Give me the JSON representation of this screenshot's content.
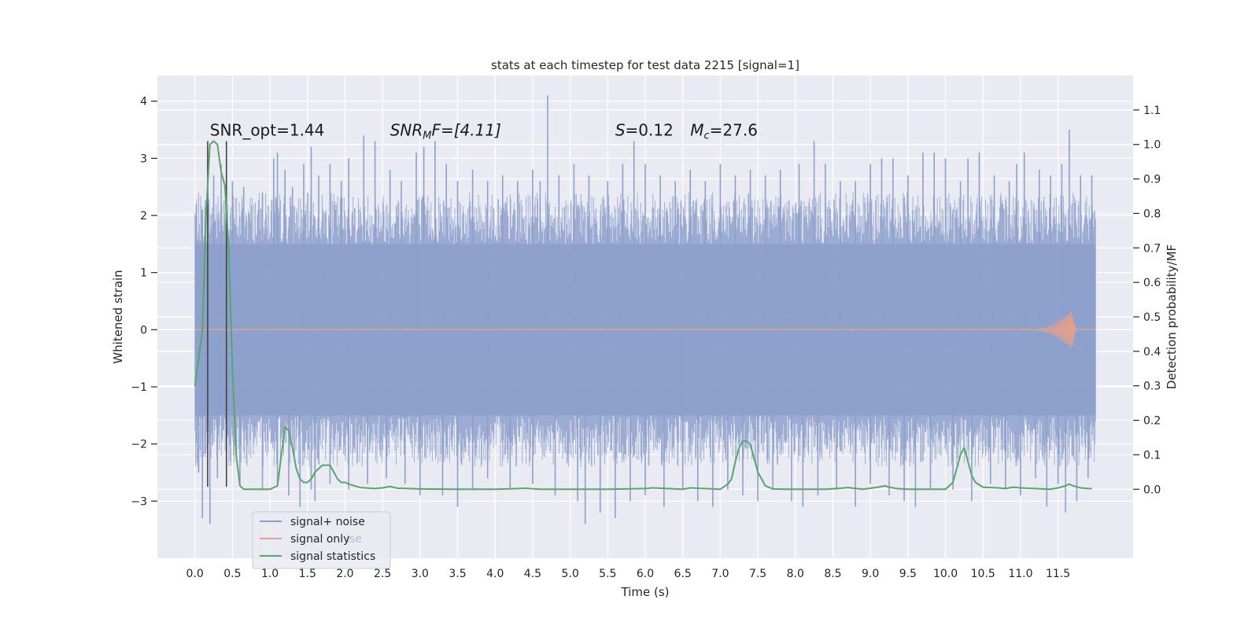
{
  "chart_data": {
    "type": "line",
    "title": "stats at each timestep for test data 2215 [signal=1]",
    "xlabel": "Time (s)",
    "ylabel_left": "Whitened strain",
    "ylabel_right": "Detection probability/MF",
    "xlim": [
      -0.5,
      12.5
    ],
    "ylim_left": [
      -4.0,
      4.45
    ],
    "ylim_right": [
      -0.2,
      1.2
    ],
    "xticks": [
      0.0,
      0.5,
      1.0,
      1.5,
      2.0,
      2.5,
      3.0,
      3.5,
      4.0,
      4.5,
      5.0,
      5.5,
      6.0,
      6.5,
      7.0,
      7.5,
      8.0,
      8.5,
      9.0,
      9.5,
      10.0,
      10.5,
      11.0,
      11.5
    ],
    "xtick_labels": [
      "0.0",
      "0.5",
      "1.0",
      "1.5",
      "2.0",
      "2.5",
      "3.0",
      "3.5",
      "4.0",
      "4.5",
      "5.0",
      "5.5",
      "6.0",
      "6.5",
      "7.0",
      "7.5",
      "8.0",
      "8.5",
      "9.0",
      "9.5",
      "10.0",
      "10.5",
      "11.0",
      "11.5"
    ],
    "yticks_left": [
      -3,
      -2,
      -1,
      0,
      1,
      2,
      3,
      4
    ],
    "ytick_labels_left": [
      "−3",
      "−2",
      "−1",
      "0",
      "1",
      "2",
      "3",
      "4"
    ],
    "yticks_right": [
      0.0,
      0.1,
      0.2,
      0.3,
      0.4,
      0.5,
      0.6,
      0.7,
      0.8,
      0.9,
      1.0,
      1.1
    ],
    "ytick_labels_right": [
      "0.0",
      "0.1",
      "0.2",
      "0.3",
      "0.4",
      "0.5",
      "0.6",
      "0.7",
      "0.8",
      "0.9",
      "1.0",
      "1.1"
    ],
    "grid": true,
    "legend_placement": "lower-left",
    "series": [
      {
        "name": "signal+ noise",
        "color": "#8da0cb",
        "axis": "left",
        "x_range": [
          0.0,
          12.0
        ],
        "envelope_typical": [
          -1.5,
          1.5
        ],
        "spikes_up": [
          [
            0.02,
            2.2
          ],
          [
            0.1,
            2.1
          ],
          [
            0.17,
            2.5
          ],
          [
            0.25,
            2.7
          ],
          [
            0.35,
            2.9
          ],
          [
            0.5,
            2.6
          ],
          [
            0.65,
            2.5
          ],
          [
            0.9,
            2.4
          ],
          [
            1.05,
            3.0
          ],
          [
            1.1,
            3.1
          ],
          [
            1.2,
            2.8
          ],
          [
            1.3,
            2.5
          ],
          [
            1.45,
            2.9
          ],
          [
            1.55,
            3.2
          ],
          [
            1.65,
            2.7
          ],
          [
            1.8,
            2.9
          ],
          [
            1.95,
            2.6
          ],
          [
            2.05,
            3.0
          ],
          [
            2.25,
            3.4
          ],
          [
            2.4,
            3.3
          ],
          [
            2.6,
            2.8
          ],
          [
            2.75,
            2.6
          ],
          [
            2.95,
            3.1
          ],
          [
            3.05,
            3.2
          ],
          [
            3.2,
            3.3
          ],
          [
            3.35,
            2.9
          ],
          [
            3.5,
            2.6
          ],
          [
            3.7,
            2.8
          ],
          [
            3.9,
            2.6
          ],
          [
            4.1,
            2.7
          ],
          [
            4.3,
            2.6
          ],
          [
            4.5,
            2.8
          ],
          [
            4.6,
            2.6
          ],
          [
            4.7,
            4.1
          ],
          [
            4.85,
            2.7
          ],
          [
            5.05,
            2.9
          ],
          [
            5.25,
            2.7
          ],
          [
            5.5,
            2.6
          ],
          [
            5.7,
            2.9
          ],
          [
            5.85,
            3.3
          ],
          [
            6.0,
            2.9
          ],
          [
            6.2,
            2.7
          ],
          [
            6.4,
            2.6
          ],
          [
            6.6,
            2.8
          ],
          [
            6.8,
            2.6
          ],
          [
            7.0,
            2.9
          ],
          [
            7.2,
            2.7
          ],
          [
            7.4,
            2.8
          ],
          [
            7.6,
            2.7
          ],
          [
            7.8,
            2.8
          ],
          [
            8.05,
            2.9
          ],
          [
            8.25,
            3.3
          ],
          [
            8.4,
            2.9
          ],
          [
            8.6,
            2.6
          ],
          [
            8.8,
            2.6
          ],
          [
            9.0,
            2.9
          ],
          [
            9.15,
            3.0
          ],
          [
            9.3,
            3.0
          ],
          [
            9.5,
            2.7
          ],
          [
            9.7,
            3.1
          ],
          [
            9.85,
            3.1
          ],
          [
            10.0,
            3.0
          ],
          [
            10.2,
            2.6
          ],
          [
            10.3,
            3.0
          ],
          [
            10.45,
            3.1
          ],
          [
            10.65,
            2.7
          ],
          [
            10.85,
            2.6
          ],
          [
            10.95,
            2.9
          ],
          [
            11.05,
            3.1
          ],
          [
            11.25,
            2.8
          ],
          [
            11.4,
            2.7
          ],
          [
            11.55,
            2.9
          ],
          [
            11.65,
            3.5
          ],
          [
            11.8,
            2.7
          ],
          [
            11.95,
            2.7
          ]
        ],
        "spikes_down": [
          [
            0.05,
            -2.5
          ],
          [
            0.1,
            -3.3
          ],
          [
            0.2,
            -3.4
          ],
          [
            0.3,
            -2.6
          ],
          [
            0.6,
            -2.7
          ],
          [
            0.9,
            -2.8
          ],
          [
            1.1,
            -2.7
          ],
          [
            1.25,
            -2.9
          ],
          [
            1.4,
            -3.1
          ],
          [
            1.55,
            -2.8
          ],
          [
            1.6,
            -3.0
          ],
          [
            1.8,
            -2.7
          ],
          [
            2.05,
            -2.8
          ],
          [
            2.3,
            -2.7
          ],
          [
            2.55,
            -2.6
          ],
          [
            2.8,
            -2.7
          ],
          [
            3.0,
            -2.9
          ],
          [
            3.3,
            -2.9
          ],
          [
            3.5,
            -3.1
          ],
          [
            3.7,
            -2.8
          ],
          [
            3.9,
            -2.6
          ],
          [
            4.2,
            -2.8
          ],
          [
            4.5,
            -2.7
          ],
          [
            4.8,
            -2.9
          ],
          [
            5.1,
            -3.0
          ],
          [
            5.2,
            -3.4
          ],
          [
            5.4,
            -3.2
          ],
          [
            5.6,
            -3.3
          ],
          [
            5.8,
            -3.0
          ],
          [
            6.0,
            -2.9
          ],
          [
            6.25,
            -3.1
          ],
          [
            6.5,
            -2.8
          ],
          [
            6.7,
            -3.0
          ],
          [
            6.9,
            -3.1
          ],
          [
            7.1,
            -2.8
          ],
          [
            7.3,
            -2.9
          ],
          [
            7.5,
            -3.0
          ],
          [
            7.7,
            -2.8
          ],
          [
            7.95,
            -3.0
          ],
          [
            8.1,
            -3.1
          ],
          [
            8.3,
            -2.9
          ],
          [
            8.55,
            -2.8
          ],
          [
            8.8,
            -3.1
          ],
          [
            9.0,
            -2.7
          ],
          [
            9.25,
            -2.9
          ],
          [
            9.45,
            -3.0
          ],
          [
            9.6,
            -3.1
          ],
          [
            9.8,
            -2.8
          ],
          [
            10.1,
            -2.8
          ],
          [
            10.35,
            -3.0
          ],
          [
            10.6,
            -2.7
          ],
          [
            10.8,
            -2.8
          ],
          [
            11.0,
            -2.9
          ],
          [
            11.2,
            -2.6
          ],
          [
            11.35,
            -3.1
          ],
          [
            11.5,
            -2.7
          ],
          [
            11.6,
            -3.2
          ],
          [
            11.75,
            -3.0
          ],
          [
            11.9,
            -2.6
          ]
        ]
      },
      {
        "name": "signal only",
        "color": "#e5a08a",
        "axis": "left",
        "x_range": [
          0.0,
          12.0
        ],
        "chirp_start": 11.1,
        "chirp_peak_x": 11.68,
        "chirp_peak_amplitude": 0.32,
        "baseline": 0.0
      },
      {
        "name": "signal statistics",
        "color": "#55a868",
        "axis": "right",
        "x": [
          0.0,
          0.05,
          0.1,
          0.15,
          0.2,
          0.25,
          0.3,
          0.35,
          0.4,
          0.45,
          0.5,
          0.55,
          0.6,
          0.65,
          0.7,
          0.8,
          0.9,
          1.0,
          1.1,
          1.2,
          1.25,
          1.3,
          1.35,
          1.4,
          1.45,
          1.5,
          1.55,
          1.6,
          1.7,
          1.8,
          1.85,
          1.9,
          1.95,
          2.0,
          2.05,
          2.2,
          2.4,
          2.5,
          2.6,
          2.7,
          3.0,
          3.5,
          4.0,
          4.3,
          4.4,
          4.6,
          5.0,
          5.5,
          6.0,
          6.1,
          6.3,
          6.5,
          6.6,
          6.8,
          7.0,
          7.1,
          7.15,
          7.2,
          7.25,
          7.3,
          7.35,
          7.4,
          7.45,
          7.5,
          7.55,
          7.6,
          7.7,
          7.9,
          8.2,
          8.4,
          8.6,
          8.7,
          8.9,
          9.1,
          9.2,
          9.25,
          9.35,
          9.5,
          9.8,
          10.0,
          10.1,
          10.15,
          10.2,
          10.25,
          10.3,
          10.35,
          10.4,
          10.5,
          10.7,
          10.8,
          10.9,
          11.0,
          11.2,
          11.4,
          11.5,
          11.6,
          11.65,
          11.7,
          11.8,
          11.9,
          11.95
        ],
        "y": [
          0.3,
          0.38,
          0.46,
          0.8,
          1.0,
          1.01,
          1.0,
          0.92,
          0.88,
          0.7,
          0.35,
          0.1,
          0.01,
          0.0,
          0.0,
          0.0,
          0.0,
          0.0,
          0.01,
          0.18,
          0.17,
          0.12,
          0.06,
          0.03,
          0.02,
          0.02,
          0.03,
          0.05,
          0.07,
          0.07,
          0.05,
          0.03,
          0.02,
          0.02,
          0.015,
          0.005,
          0.002,
          0.004,
          0.008,
          0.003,
          0.001,
          0.0,
          0.0,
          0.002,
          0.003,
          0.0,
          0.0,
          0.0,
          0.002,
          0.004,
          0.002,
          0.0,
          0.004,
          0.002,
          0.0,
          0.015,
          0.03,
          0.08,
          0.12,
          0.14,
          0.14,
          0.13,
          0.09,
          0.05,
          0.03,
          0.01,
          0.001,
          0.0,
          0.0,
          0.0,
          0.003,
          0.005,
          0.0,
          0.006,
          0.01,
          0.006,
          0.002,
          0.0,
          0.0,
          0.0,
          0.02,
          0.06,
          0.1,
          0.12,
          0.08,
          0.04,
          0.02,
          0.006,
          0.004,
          0.002,
          0.006,
          0.004,
          0.002,
          0.0,
          0.004,
          0.01,
          0.015,
          0.01,
          0.004,
          0.002,
          0.002
        ]
      }
    ],
    "vertical_markers_x": [
      0.17,
      0.42
    ],
    "vertical_marker_color": "#444444",
    "annotations": [
      {
        "id": "snr_opt",
        "text": "SNR_opt=1.44",
        "x": 0.2,
        "y": 3.4
      },
      {
        "id": "snr_mf",
        "text_main": "SNR",
        "text_sub": "M",
        "text_rest": "F=[4.11]",
        "x": 2.6,
        "y": 3.4
      },
      {
        "id": "s_stat",
        "text_main": "S",
        "text_rest": "=0.12",
        "x": 5.6,
        "y": 3.4
      },
      {
        "id": "mc",
        "text_main": "M",
        "text_sub": "c",
        "text_rest": "=27.6",
        "x": 6.6,
        "y": 3.4
      }
    ],
    "legend_entries": [
      "signal+ noise",
      "signal only",
      "signal statistics"
    ],
    "legend_ghost_text": "ise"
  }
}
